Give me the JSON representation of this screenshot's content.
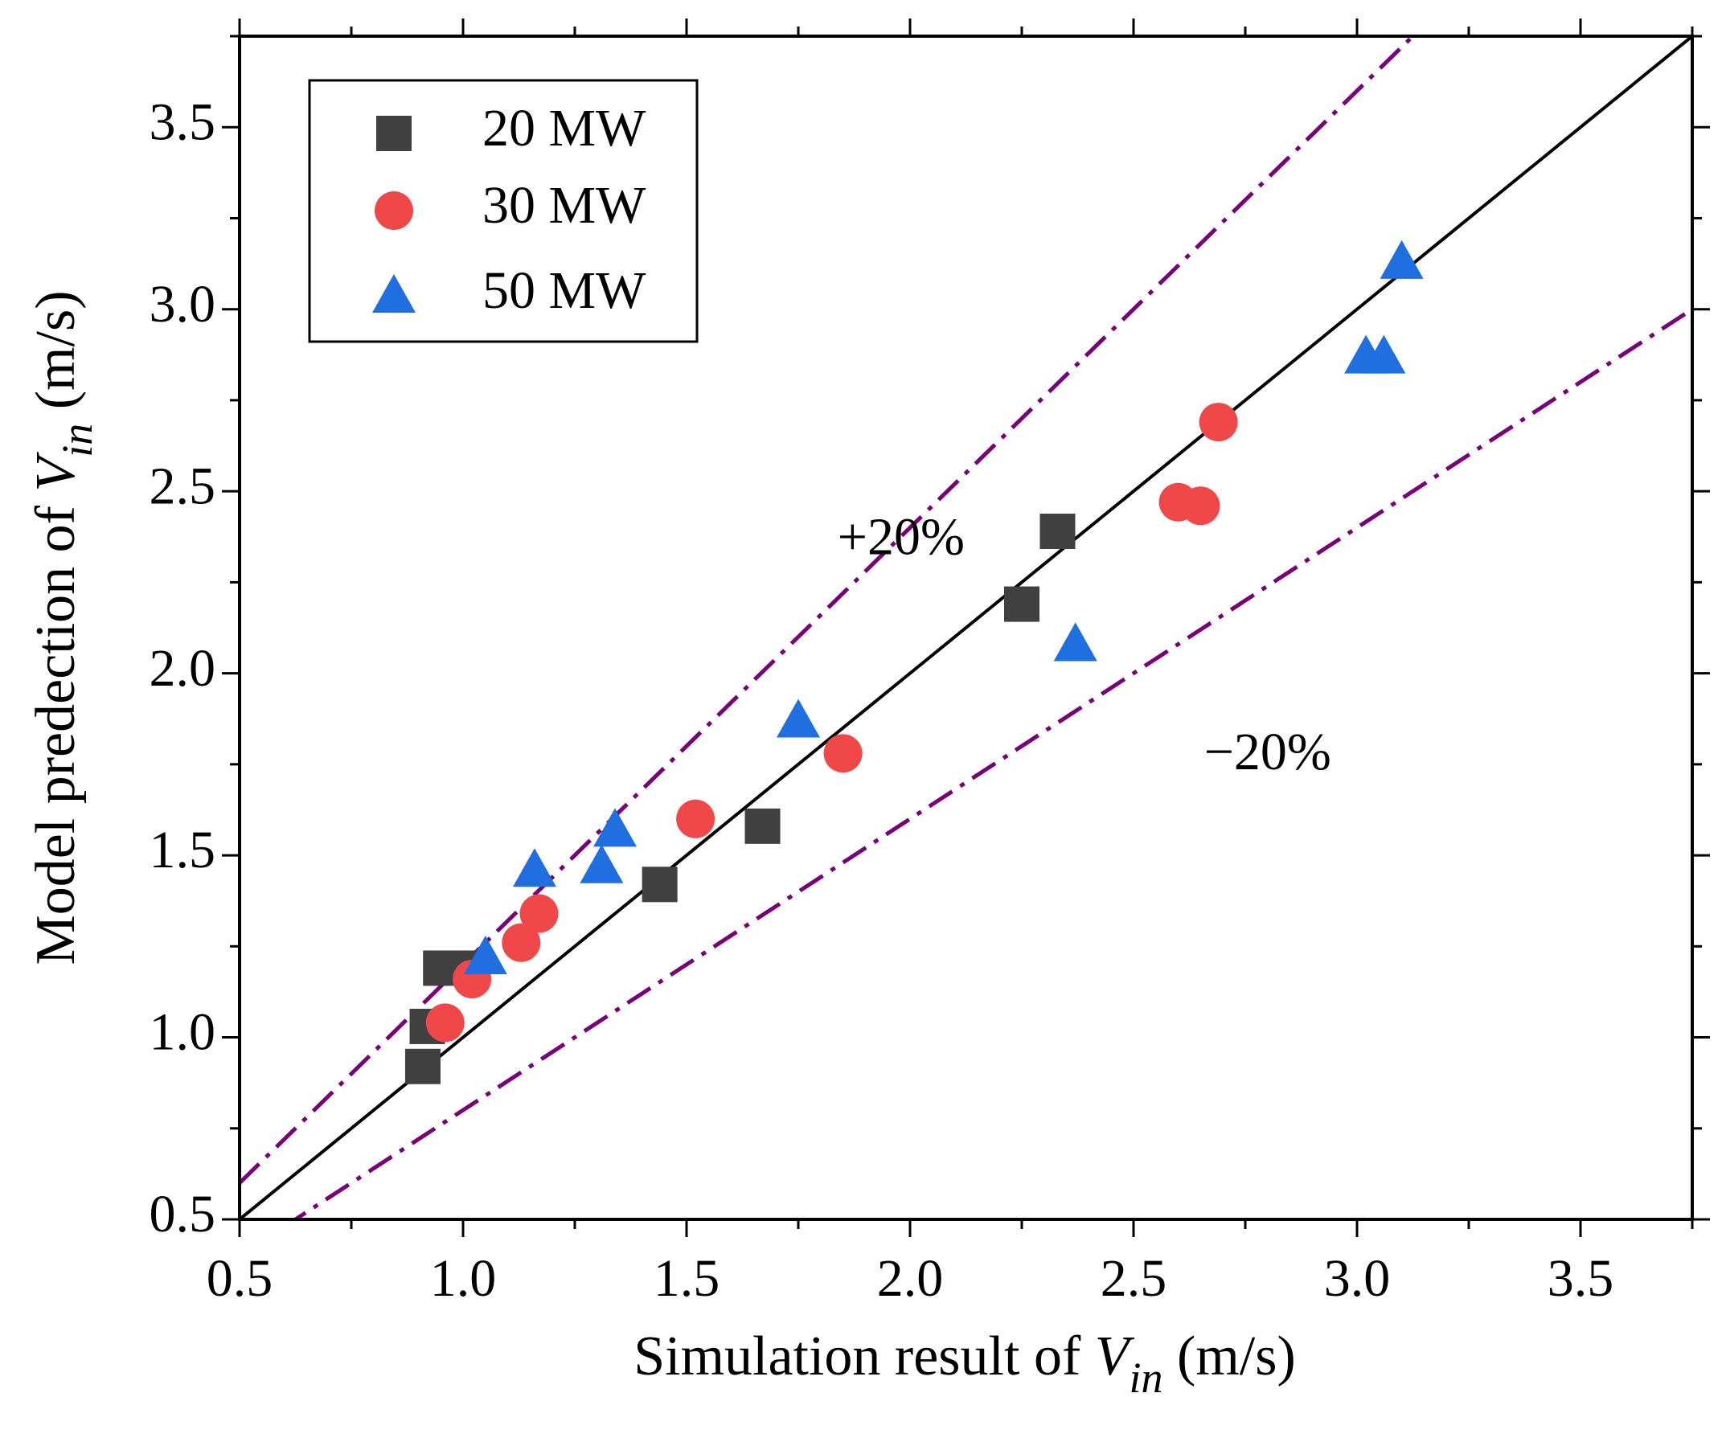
{
  "chart_data": {
    "type": "scatter",
    "title": "",
    "xlabel": {
      "prefix": "Simulation result of ",
      "var": "V",
      "sub": "in",
      "suffix": " (m/s)"
    },
    "ylabel": {
      "prefix": "Model predection of ",
      "var": "V",
      "sub": "in",
      "suffix": " (m/s)"
    },
    "xlim": [
      0.5,
      3.75
    ],
    "ylim": [
      0.5,
      3.75
    ],
    "x_ticks": [
      "0.5",
      "1.0",
      "1.5",
      "2.0",
      "2.5",
      "3.0",
      "3.5"
    ],
    "y_ticks": [
      "0.5",
      "1.0",
      "1.5",
      "2.0",
      "2.5",
      "3.0",
      "3.5"
    ],
    "grid": false,
    "legend_position": "top-left",
    "reference_lines": [
      {
        "name": "y = x",
        "slope": 1.0,
        "style": "solid",
        "color": "#000000"
      },
      {
        "name": "+20%",
        "slope": 1.2,
        "style": "dash-dot",
        "color": "#7a007a"
      },
      {
        "name": "-20%",
        "slope": 0.8,
        "style": "dash-dot",
        "color": "#7a007a"
      }
    ],
    "annotations": [
      {
        "text": "+20%",
        "x": 1.98,
        "y": 2.36
      },
      {
        "text": "−20%",
        "x": 2.8,
        "y": 1.77
      }
    ],
    "series": [
      {
        "name": "20 MW",
        "marker": "square",
        "color": "#404040",
        "points": [
          [
            0.91,
            0.92
          ],
          [
            0.92,
            1.03
          ],
          [
            0.95,
            1.19
          ],
          [
            1.02,
            1.19
          ],
          [
            1.44,
            1.42
          ],
          [
            1.67,
            1.58
          ],
          [
            2.25,
            2.19
          ],
          [
            2.33,
            2.39
          ]
        ]
      },
      {
        "name": "30 MW",
        "marker": "circle",
        "color": "#f04848",
        "points": [
          [
            0.96,
            1.04
          ],
          [
            1.02,
            1.16
          ],
          [
            1.13,
            1.26
          ],
          [
            1.17,
            1.34
          ],
          [
            1.52,
            1.6
          ],
          [
            1.85,
            1.78
          ],
          [
            2.6,
            2.47
          ],
          [
            2.65,
            2.46
          ],
          [
            2.69,
            2.69
          ]
        ]
      },
      {
        "name": "50 MW",
        "marker": "triangle",
        "color": "#1f6fe0",
        "points": [
          [
            1.05,
            1.22
          ],
          [
            1.16,
            1.46
          ],
          [
            1.31,
            1.47
          ],
          [
            1.34,
            1.57
          ],
          [
            1.75,
            1.87
          ],
          [
            2.37,
            2.08
          ],
          [
            3.02,
            2.87
          ],
          [
            3.06,
            2.87
          ],
          [
            3.1,
            3.13
          ]
        ]
      }
    ]
  }
}
